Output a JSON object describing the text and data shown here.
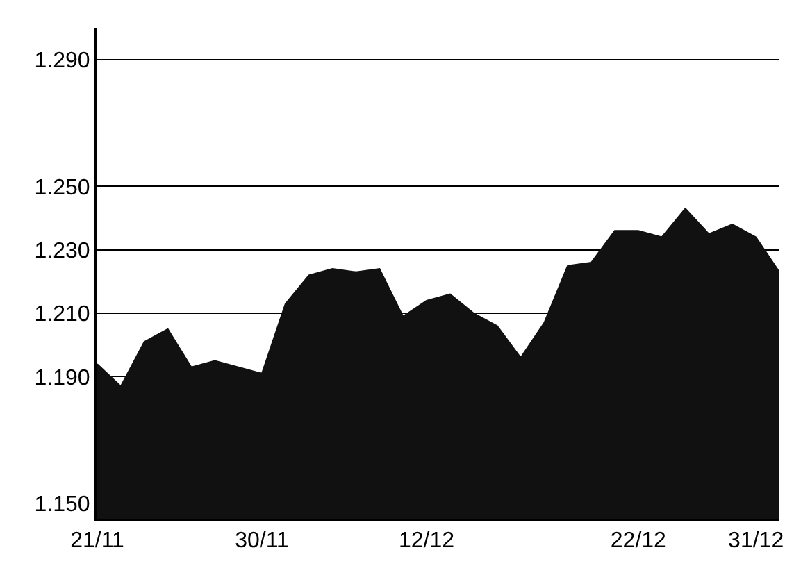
{
  "chart_data": {
    "type": "area",
    "categories": [
      "21/11",
      null,
      null,
      null,
      null,
      null,
      null,
      "30/11",
      null,
      null,
      null,
      null,
      null,
      null,
      "12/12",
      null,
      null,
      null,
      null,
      null,
      null,
      null,
      null,
      "22/12",
      null,
      null,
      null,
      null,
      "31/12",
      null
    ],
    "series": [
      {
        "color": "#111111",
        "values": [
          1.194,
          1.187,
          1.201,
          1.205,
          1.193,
          1.195,
          1.193,
          1.191,
          1.213,
          1.222,
          1.224,
          1.223,
          1.224,
          1.209,
          1.214,
          1.216,
          1.21,
          1.206,
          1.196,
          1.207,
          1.225,
          1.226,
          1.236,
          1.236,
          1.234,
          1.243,
          1.235,
          1.238,
          1.234,
          1.223
        ]
      }
    ],
    "ylim": [
      1.145,
      1.3
    ],
    "yticks": [
      {
        "value": 1.15,
        "label": "1.150"
      },
      {
        "value": 1.19,
        "label": "1.190"
      },
      {
        "value": 1.21,
        "label": "1.210"
      },
      {
        "value": 1.23,
        "label": "1.230"
      },
      {
        "value": 1.25,
        "label": "1.250"
      },
      {
        "value": 1.29,
        "label": "1.290"
      }
    ],
    "grid": "y",
    "legend": false
  }
}
